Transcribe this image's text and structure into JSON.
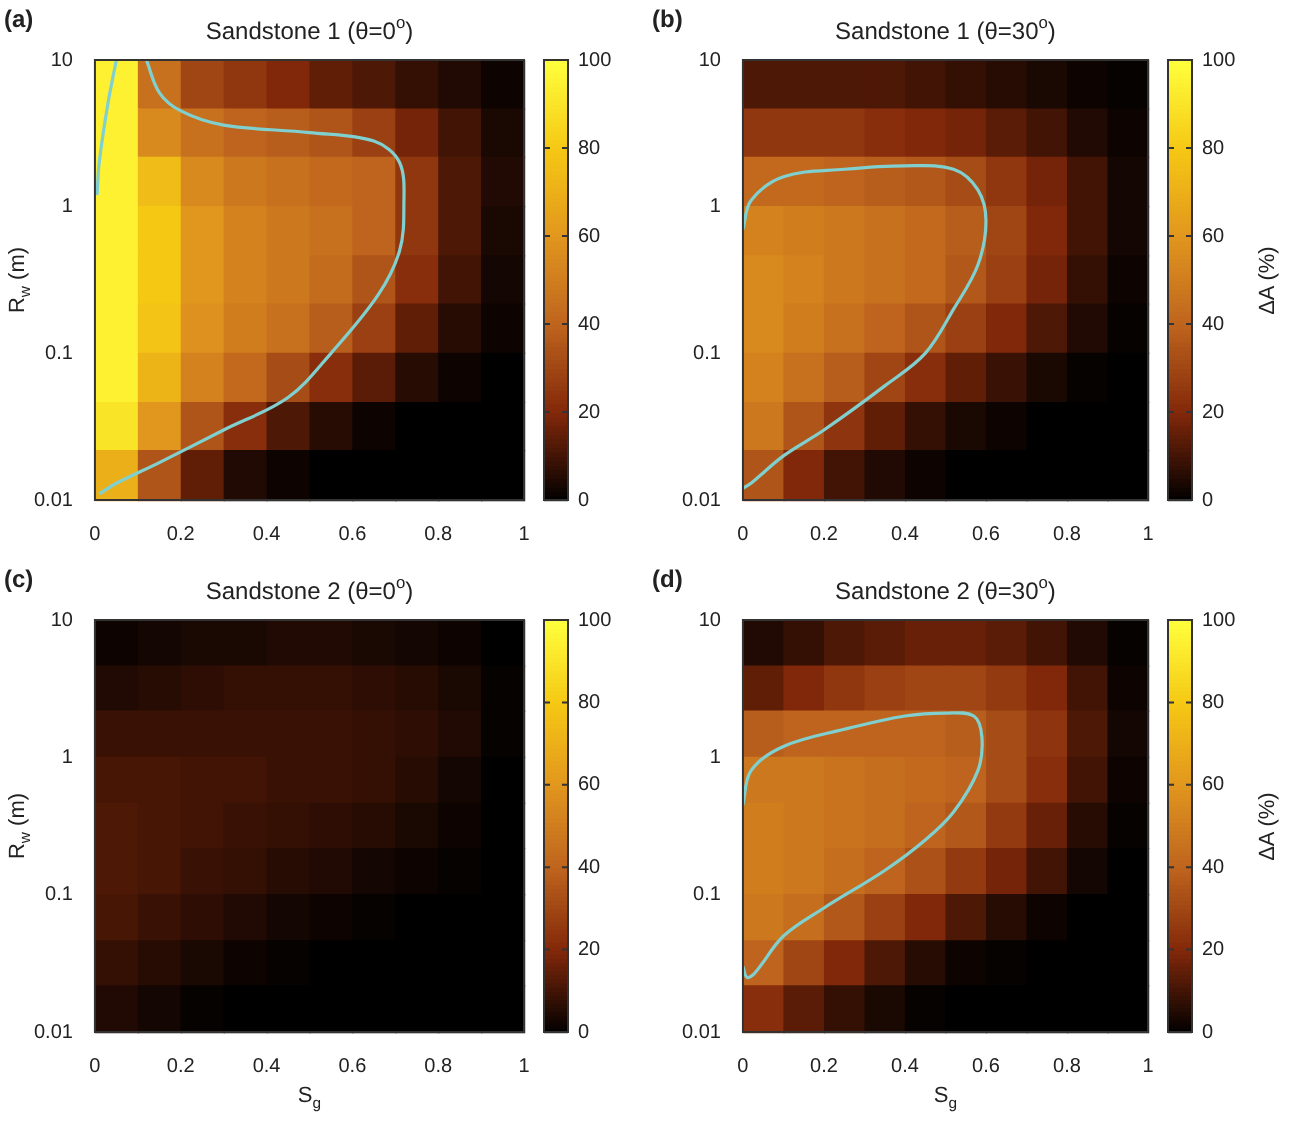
{
  "chart_data": [
    {
      "type": "heatmap",
      "title": "Sandstone 1 (θ=0$^{o}$)",
      "ylabel": "R$_{w}$ (m)",
      "annotations": [
        "(a)"
      ],
      "x": [
        0.05,
        0.15,
        0.25,
        0.35,
        0.45,
        0.55,
        0.65,
        0.75,
        0.85,
        0.95
      ],
      "y": [
        6.8,
        3.2,
        1.5,
        0.68,
        0.32,
        0.15,
        0.068,
        0.032,
        0.015
      ],
      "cells": [
        [
          95,
          45,
          30,
          25,
          20,
          15,
          12,
          8,
          5,
          2
        ],
        [
          95,
          55,
          45,
          40,
          38,
          35,
          28,
          18,
          10,
          4
        ],
        [
          95,
          75,
          55,
          48,
          45,
          42,
          40,
          25,
          12,
          5
        ],
        [
          95,
          80,
          60,
          52,
          48,
          45,
          40,
          25,
          12,
          4
        ],
        [
          95,
          80,
          60,
          52,
          48,
          43,
          35,
          22,
          10,
          3
        ],
        [
          95,
          78,
          58,
          50,
          45,
          38,
          28,
          15,
          6,
          2
        ],
        [
          95,
          72,
          52,
          42,
          32,
          22,
          14,
          6,
          2,
          0
        ],
        [
          90,
          60,
          35,
          22,
          12,
          6,
          2,
          0,
          0,
          0
        ],
        [
          70,
          35,
          15,
          5,
          2,
          0,
          0,
          0,
          0,
          0
        ]
      ],
      "xlim": [
        0,
        1
      ],
      "xticks": [
        0,
        0.2,
        0.4,
        0.6,
        0.8,
        1
      ],
      "ylim": [
        0.01,
        10
      ],
      "yticks": [
        0.01,
        0.1,
        1,
        10
      ],
      "log": "y",
      "clim": [
        0,
        100
      ],
      "cticks": [
        0,
        20,
        40,
        60,
        80,
        100
      ],
      "series": [
        {
          "type": "line",
          "color": "#80d0d0",
          "x": [
            0.12,
            0.15,
            0.2,
            0.3,
            0.5,
            0.65,
            0.71,
            0.72,
            0.71,
            0.66,
            0.55,
            0.45,
            0.3,
            0.15,
            0.05,
            0.01
          ],
          "values": [
            10,
            6,
            4.5,
            3.6,
            3.2,
            2.8,
            2,
            1,
            0.5,
            0.25,
            0.1,
            0.05,
            0.03,
            0.018,
            0.013,
            0.011
          ]
        },
        {
          "type": "line",
          "color": "#80d0d0",
          "x": [
            0.005,
            0.01,
            0.03,
            0.05
          ],
          "values": [
            1.2,
            2,
            5,
            10
          ]
        }
      ]
    },
    {
      "type": "heatmap",
      "title": "Sandstone 1 (θ=30$^{o}$)",
      "clabel": "ΔA (%)",
      "annotations": [
        "(b)"
      ],
      "x": [
        0.05,
        0.15,
        0.25,
        0.35,
        0.45,
        0.55,
        0.65,
        0.75,
        0.85,
        0.95
      ],
      "y": [
        6.8,
        3.2,
        1.5,
        0.68,
        0.32,
        0.15,
        0.068,
        0.032,
        0.015
      ],
      "cells": [
        [
          12,
          12,
          12,
          12,
          10,
          8,
          6,
          4,
          2,
          1
        ],
        [
          25,
          25,
          25,
          22,
          20,
          18,
          14,
          10,
          5,
          2
        ],
        [
          42,
          42,
          40,
          38,
          36,
          32,
          25,
          18,
          10,
          3
        ],
        [
          52,
          50,
          48,
          45,
          42,
          38,
          30,
          20,
          10,
          3
        ],
        [
          55,
          52,
          48,
          45,
          42,
          36,
          28,
          18,
          8,
          2
        ],
        [
          55,
          50,
          45,
          40,
          35,
          28,
          20,
          12,
          5,
          1
        ],
        [
          52,
          45,
          38,
          30,
          22,
          15,
          9,
          4,
          1,
          0
        ],
        [
          48,
          35,
          24,
          15,
          8,
          4,
          2,
          0,
          0,
          0
        ],
        [
          35,
          20,
          10,
          5,
          2,
          0,
          0,
          0,
          0,
          0
        ]
      ],
      "xlim": [
        0,
        1
      ],
      "xticks": [
        0,
        0.2,
        0.4,
        0.6,
        0.8,
        1
      ],
      "ylim": [
        0.01,
        10
      ],
      "yticks": [
        0.01,
        0.1,
        1,
        10
      ],
      "log": "y",
      "clim": [
        0,
        100
      ],
      "cticks": [
        0,
        20,
        40,
        60,
        80,
        100
      ],
      "series": [
        {
          "type": "line",
          "color": "#80d0d0",
          "x": [
            0,
            0.02,
            0.1,
            0.25,
            0.4,
            0.52,
            0.58,
            0.6,
            0.58,
            0.52,
            0.45,
            0.35,
            0.2,
            0.1,
            0.02,
            0
          ],
          "values": [
            0.7,
            1.1,
            1.6,
            1.8,
            1.9,
            1.8,
            1.3,
            0.8,
            0.4,
            0.2,
            0.1,
            0.06,
            0.03,
            0.02,
            0.013,
            0.012
          ]
        }
      ]
    },
    {
      "type": "heatmap",
      "title": "Sandstone 2 (θ=0$^{o}$)",
      "xlabel": "S$_{g}$",
      "ylabel": "R$_{w}$ (m)",
      "annotations": [
        "(c)"
      ],
      "x": [
        0.05,
        0.15,
        0.25,
        0.35,
        0.45,
        0.55,
        0.65,
        0.75,
        0.85,
        0.95
      ],
      "y": [
        6.8,
        3.2,
        1.5,
        0.68,
        0.32,
        0.15,
        0.068,
        0.032,
        0.015
      ],
      "cells": [
        [
          2,
          3,
          4,
          4,
          5,
          5,
          4,
          3,
          2,
          0
        ],
        [
          5,
          6,
          7,
          8,
          8,
          8,
          7,
          6,
          4,
          1
        ],
        [
          9,
          9,
          9,
          9,
          9,
          9,
          8,
          7,
          5,
          1
        ],
        [
          11,
          11,
          10,
          10,
          9,
          9,
          8,
          6,
          3,
          0
        ],
        [
          12,
          11,
          10,
          9,
          8,
          7,
          6,
          4,
          2,
          0
        ],
        [
          12,
          11,
          9,
          8,
          6,
          5,
          3,
          2,
          1,
          0
        ],
        [
          11,
          9,
          7,
          5,
          3,
          2,
          1,
          0,
          0,
          0
        ],
        [
          8,
          6,
          4,
          2,
          1,
          0,
          0,
          0,
          0,
          0
        ],
        [
          5,
          3,
          1,
          0,
          0,
          0,
          0,
          0,
          0,
          0
        ]
      ],
      "xlim": [
        0,
        1
      ],
      "xticks": [
        0,
        0.2,
        0.4,
        0.6,
        0.8,
        1
      ],
      "ylim": [
        0.01,
        10
      ],
      "yticks": [
        0.01,
        0.1,
        1,
        10
      ],
      "log": "y",
      "clim": [
        0,
        100
      ],
      "cticks": [
        0,
        20,
        40,
        60,
        80,
        100
      ]
    },
    {
      "type": "heatmap",
      "title": "Sandstone 2 (θ=30$^{o}$)",
      "xlabel": "S$_{g}$",
      "clabel": "ΔA (%)",
      "annotations": [
        "(d)"
      ],
      "x": [
        0.05,
        0.15,
        0.25,
        0.35,
        0.45,
        0.55,
        0.65,
        0.75,
        0.85,
        0.95
      ],
      "y": [
        6.8,
        3.2,
        1.5,
        0.68,
        0.32,
        0.15,
        0.068,
        0.032,
        0.015
      ],
      "cells": [
        [
          5,
          8,
          12,
          14,
          16,
          16,
          14,
          10,
          5,
          1
        ],
        [
          15,
          20,
          25,
          28,
          30,
          30,
          26,
          20,
          10,
          2
        ],
        [
          38,
          40,
          40,
          40,
          40,
          38,
          32,
          24,
          12,
          3
        ],
        [
          48,
          48,
          46,
          44,
          42,
          40,
          32,
          22,
          10,
          2
        ],
        [
          50,
          48,
          46,
          44,
          40,
          36,
          26,
          16,
          6,
          1
        ],
        [
          50,
          48,
          44,
          40,
          34,
          26,
          18,
          10,
          3,
          0
        ],
        [
          48,
          44,
          36,
          28,
          20,
          12,
          6,
          2,
          0,
          0
        ],
        [
          40,
          30,
          20,
          12,
          6,
          2,
          1,
          0,
          0,
          0
        ],
        [
          22,
          14,
          8,
          4,
          1,
          0,
          0,
          0,
          0,
          0
        ]
      ],
      "xlim": [
        0,
        1
      ],
      "xticks": [
        0,
        0.2,
        0.4,
        0.6,
        0.8,
        1
      ],
      "ylim": [
        0.01,
        10
      ],
      "yticks": [
        0.01,
        0.1,
        1,
        10
      ],
      "log": "y",
      "clim": [
        0,
        100
      ],
      "cticks": [
        0,
        20,
        40,
        60,
        80,
        100
      ],
      "series": [
        {
          "type": "line",
          "color": "#80d0d0",
          "x": [
            0,
            0.02,
            0.1,
            0.25,
            0.4,
            0.5,
            0.57,
            0.59,
            0.58,
            0.52,
            0.45,
            0.35,
            0.2,
            0.1,
            0.03,
            0.01,
            0
          ],
          "values": [
            0.45,
            0.8,
            1.2,
            1.6,
            2,
            2.1,
            2,
            1.4,
            0.8,
            0.4,
            0.25,
            0.15,
            0.08,
            0.05,
            0.027,
            0.025,
            0.03
          ]
        }
      ]
    }
  ]
}
